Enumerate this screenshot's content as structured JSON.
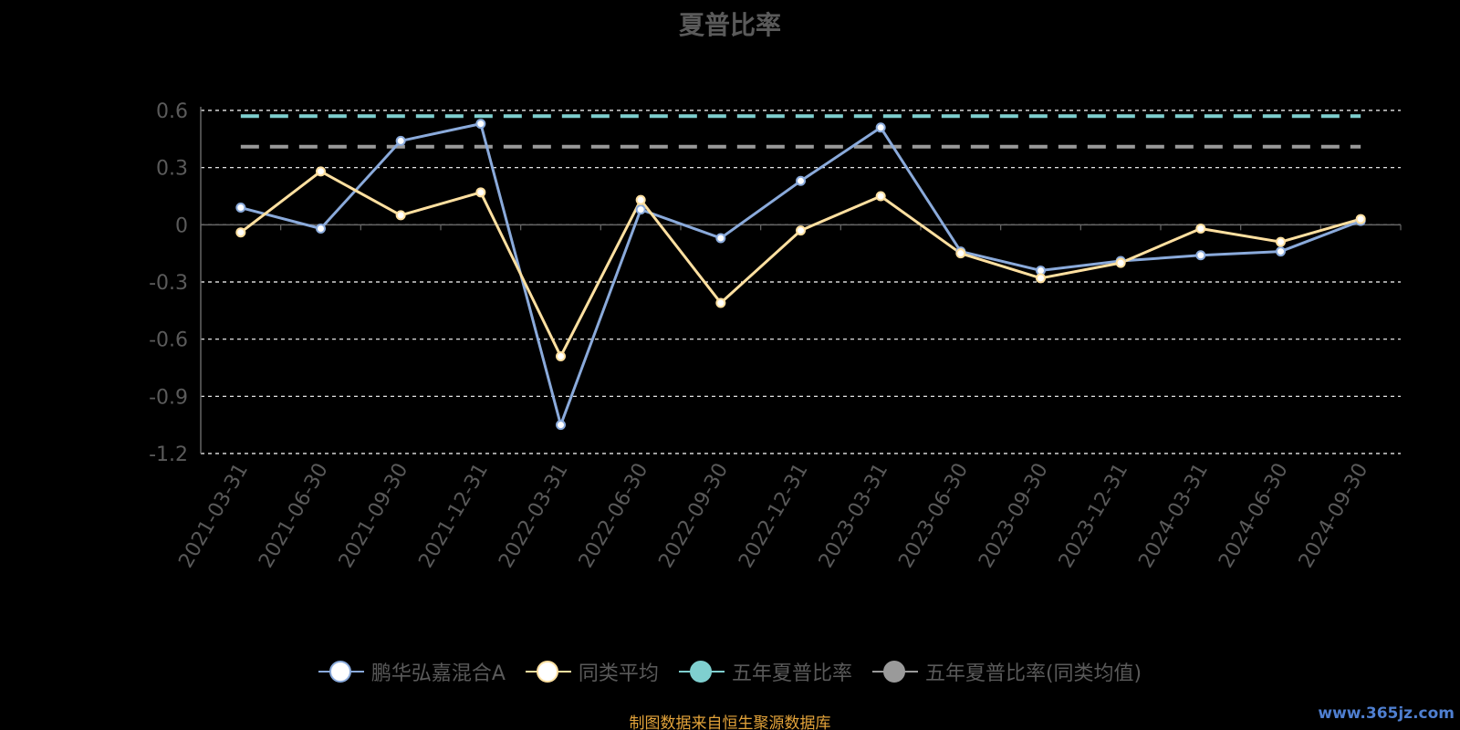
{
  "chart_data": {
    "type": "line",
    "title": "夏普比率",
    "xlabel": "",
    "ylabel": "",
    "categories": [
      "2021-03-31",
      "2021-06-30",
      "2021-09-30",
      "2021-12-31",
      "2022-03-31",
      "2022-06-30",
      "2022-09-30",
      "2022-12-31",
      "2023-03-31",
      "2023-06-30",
      "2023-09-30",
      "2023-12-31",
      "2024-03-31",
      "2024-06-30",
      "2024-09-30"
    ],
    "yticks": [
      "0.6",
      "0.3",
      "0",
      "-0.3",
      "-0.6",
      "-0.9",
      "-1.2"
    ],
    "ylim": [
      -1.2,
      0.6
    ],
    "grid": true,
    "legend_position": "bottom",
    "series": [
      {
        "name": "鹏华弘嘉混合A",
        "color": "#8aaadb",
        "values": [
          0.09,
          -0.02,
          0.44,
          0.53,
          -1.05,
          0.08,
          -0.07,
          0.23,
          0.51,
          -0.14,
          -0.24,
          -0.19,
          -0.16,
          -0.14,
          0.02
        ]
      },
      {
        "name": "同类平均",
        "color": "#ffe0a0",
        "values": [
          -0.04,
          0.28,
          0.05,
          0.17,
          -0.69,
          0.13,
          -0.41,
          -0.03,
          0.15,
          -0.15,
          -0.28,
          -0.2,
          -0.02,
          -0.09,
          0.03
        ]
      },
      {
        "name": "五年夏普比率",
        "color": "#7fcfcf",
        "constant": 0.57
      },
      {
        "name": "五年夏普比率(同类均值)",
        "color": "#9a9a9a",
        "constant": 0.41
      }
    ]
  },
  "footer": {
    "source": "制图数据来自恒生聚源数据库",
    "watermark": "www.365jz.com"
  }
}
